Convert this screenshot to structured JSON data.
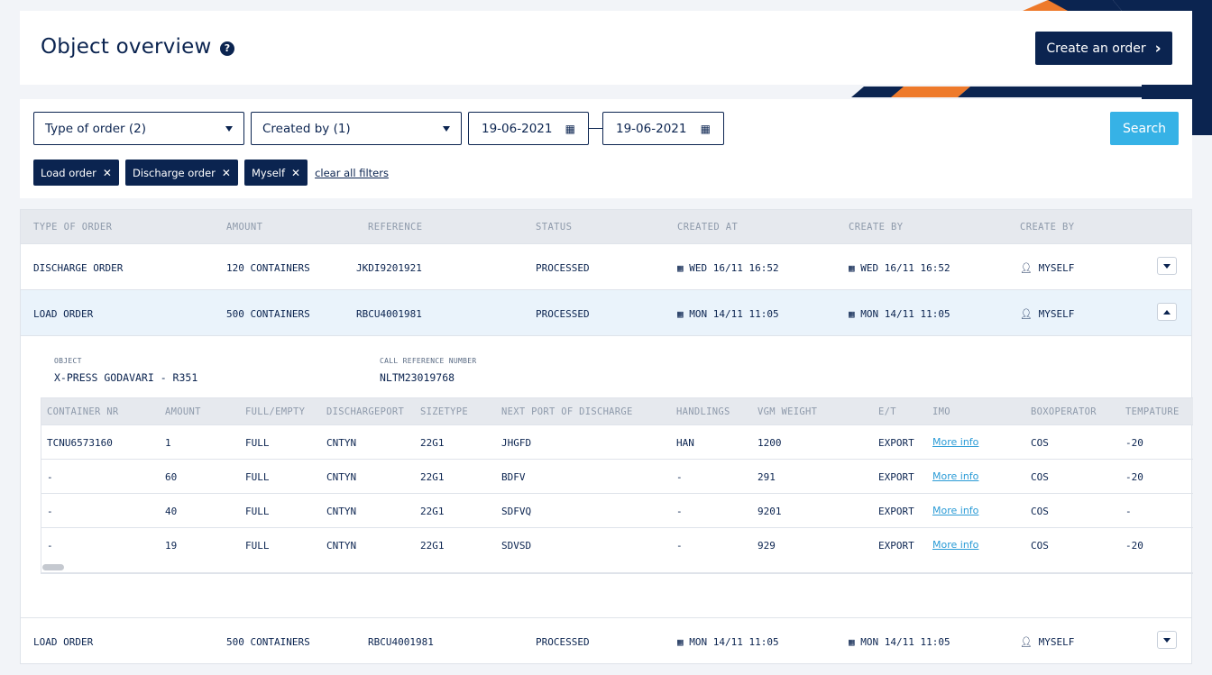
{
  "colors": {
    "navy": "#0b2450",
    "orange": "#ee7a2b",
    "accent_blue": "#36b2e6",
    "link": "#2a9bd6"
  },
  "header": {
    "title": "Object overview",
    "help_icon": "?",
    "create_label": "Create an order",
    "create_icon": "›"
  },
  "filters": {
    "type_select": "Type of order (2)",
    "created_by_select": "Created by (1)",
    "date_from": "19-06-2021",
    "date_to": "19-06-2021",
    "search_label": "Search",
    "chips": [
      "Load order",
      "Discharge order",
      "Myself"
    ],
    "chip_remove": "✕",
    "clear_label": "clear all filters"
  },
  "table": {
    "columns": [
      "TYPE OF ORDER",
      "AMOUNT",
      "REFERENCE",
      "STATUS",
      "CREATED AT",
      "CREATE BY",
      "CREATE BY"
    ],
    "rows": [
      {
        "type": "DISCHARGE ORDER",
        "amount": "120 CONTAINERS",
        "reference": "JKDI9201921",
        "status": "PROCESSED",
        "created_at": "WED 16/11 16:52",
        "created_by_date": "WED 16/11 16:52",
        "user": "MYSELF"
      },
      {
        "type": "LOAD ORDER",
        "amount": "500 CONTAINERS",
        "reference": "RBCU4001981",
        "status": "PROCESSED",
        "created_at": "MON 14/11 11:05",
        "created_by_date": "MON 14/11 11:05",
        "user": "MYSELF"
      },
      {
        "type": "LOAD ORDER",
        "amount": "500 CONTAINERS",
        "reference": "RBCU4001981",
        "status": "PROCESSED",
        "created_at": "MON 14/11 11:05",
        "created_by_date": "MON 14/11 11:05",
        "user": "MYSELF"
      }
    ]
  },
  "detail": {
    "object_label": "OBJECT",
    "object_value": "X-PRESS GODAVARI - R351",
    "call_ref_label": "CALL REFERENCE NUMBER",
    "call_ref_value": "NLTM23019768",
    "columns": [
      "CONTAINER NR",
      "AMOUNT",
      "FULL/EMPTY",
      "DISCHARGEPORT",
      "SIZETYPE",
      "NEXT PORT OF DISCHARGE",
      "HANDLINGS",
      "VGM WEIGHT",
      "E/T",
      "IMO",
      "BOXOPERATOR",
      "TEMPATURE"
    ],
    "rows": [
      {
        "container": "TCNU6573160",
        "amount": "1",
        "full_empty": "FULL",
        "port": "CNTYN",
        "size": "22G1",
        "next_port": "JHGFD",
        "handlings": "HAN",
        "vgm": "1200",
        "et": "EXPORT",
        "imo": "More info",
        "box": "COS",
        "temp": "-20"
      },
      {
        "container": "-",
        "amount": "60",
        "full_empty": "FULL",
        "port": "CNTYN",
        "size": "22G1",
        "next_port": "BDFV",
        "handlings": "-",
        "vgm": "291",
        "et": "EXPORT",
        "imo": "More info",
        "box": "COS",
        "temp": "-20"
      },
      {
        "container": "-",
        "amount": "40",
        "full_empty": "FULL",
        "port": "CNTYN",
        "size": "22G1",
        "next_port": "SDFVQ",
        "handlings": "-",
        "vgm": "9201",
        "et": "EXPORT",
        "imo": "More info",
        "box": "COS",
        "temp": "-"
      },
      {
        "container": "-",
        "amount": "19",
        "full_empty": "FULL",
        "port": "CNTYN",
        "size": "22G1",
        "next_port": "SDVSD",
        "handlings": "-",
        "vgm": "929",
        "et": "EXPORT",
        "imo": "More info",
        "box": "COS",
        "temp": "-20"
      }
    ]
  }
}
